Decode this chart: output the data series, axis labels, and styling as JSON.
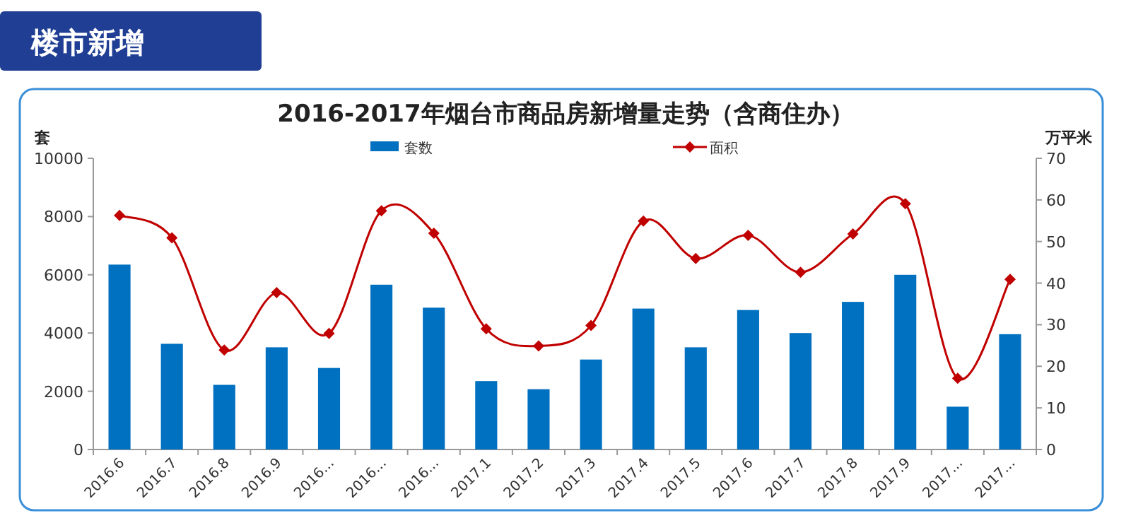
{
  "chart_data": {
    "type": "bar",
    "title": "2016-2017年烟台市商品房新增量走势（含商住办）",
    "annotations": [
      "楼市新增"
    ],
    "ylabel": "套",
    "y2label": "万平米",
    "categories": [
      "2016.6",
      "2016.7",
      "2016.8",
      "2016.9",
      "2016...",
      "2016...",
      "2016...",
      "2017.1",
      "2017.2",
      "2017.3",
      "2017.4",
      "2017.5",
      "2017.6",
      "2017.7",
      "2017.8",
      "2017.9",
      "2017...",
      "2017..."
    ],
    "series": [
      {
        "name": "套数",
        "color": "#0070c0",
        "values": [
          6350,
          3630,
          2220,
          3510,
          2800,
          5660,
          4870,
          2350,
          2070,
          3090,
          4840,
          3510,
          4790,
          4000,
          5070,
          6000,
          1470,
          3960
        ]
      },
      {
        "name": "面积",
        "type": "line",
        "axis": "y2",
        "color": "#c00000",
        "marker": "diamond",
        "values": [
          56.3,
          50.9,
          23.9,
          37.7,
          27.9,
          57.4,
          52.0,
          29.0,
          24.9,
          29.8,
          54.9,
          45.9,
          51.5,
          42.6,
          51.8,
          59.1,
          17.1,
          40.9
        ]
      }
    ],
    "ylim": [
      0,
      10000
    ],
    "yticks": [
      0,
      2000,
      4000,
      6000,
      8000,
      10000
    ],
    "y2lim": [
      0,
      70
    ],
    "y2ticks": [
      0,
      10,
      20,
      30,
      40,
      50,
      60,
      70
    ],
    "legend": "top",
    "grid": false
  }
}
